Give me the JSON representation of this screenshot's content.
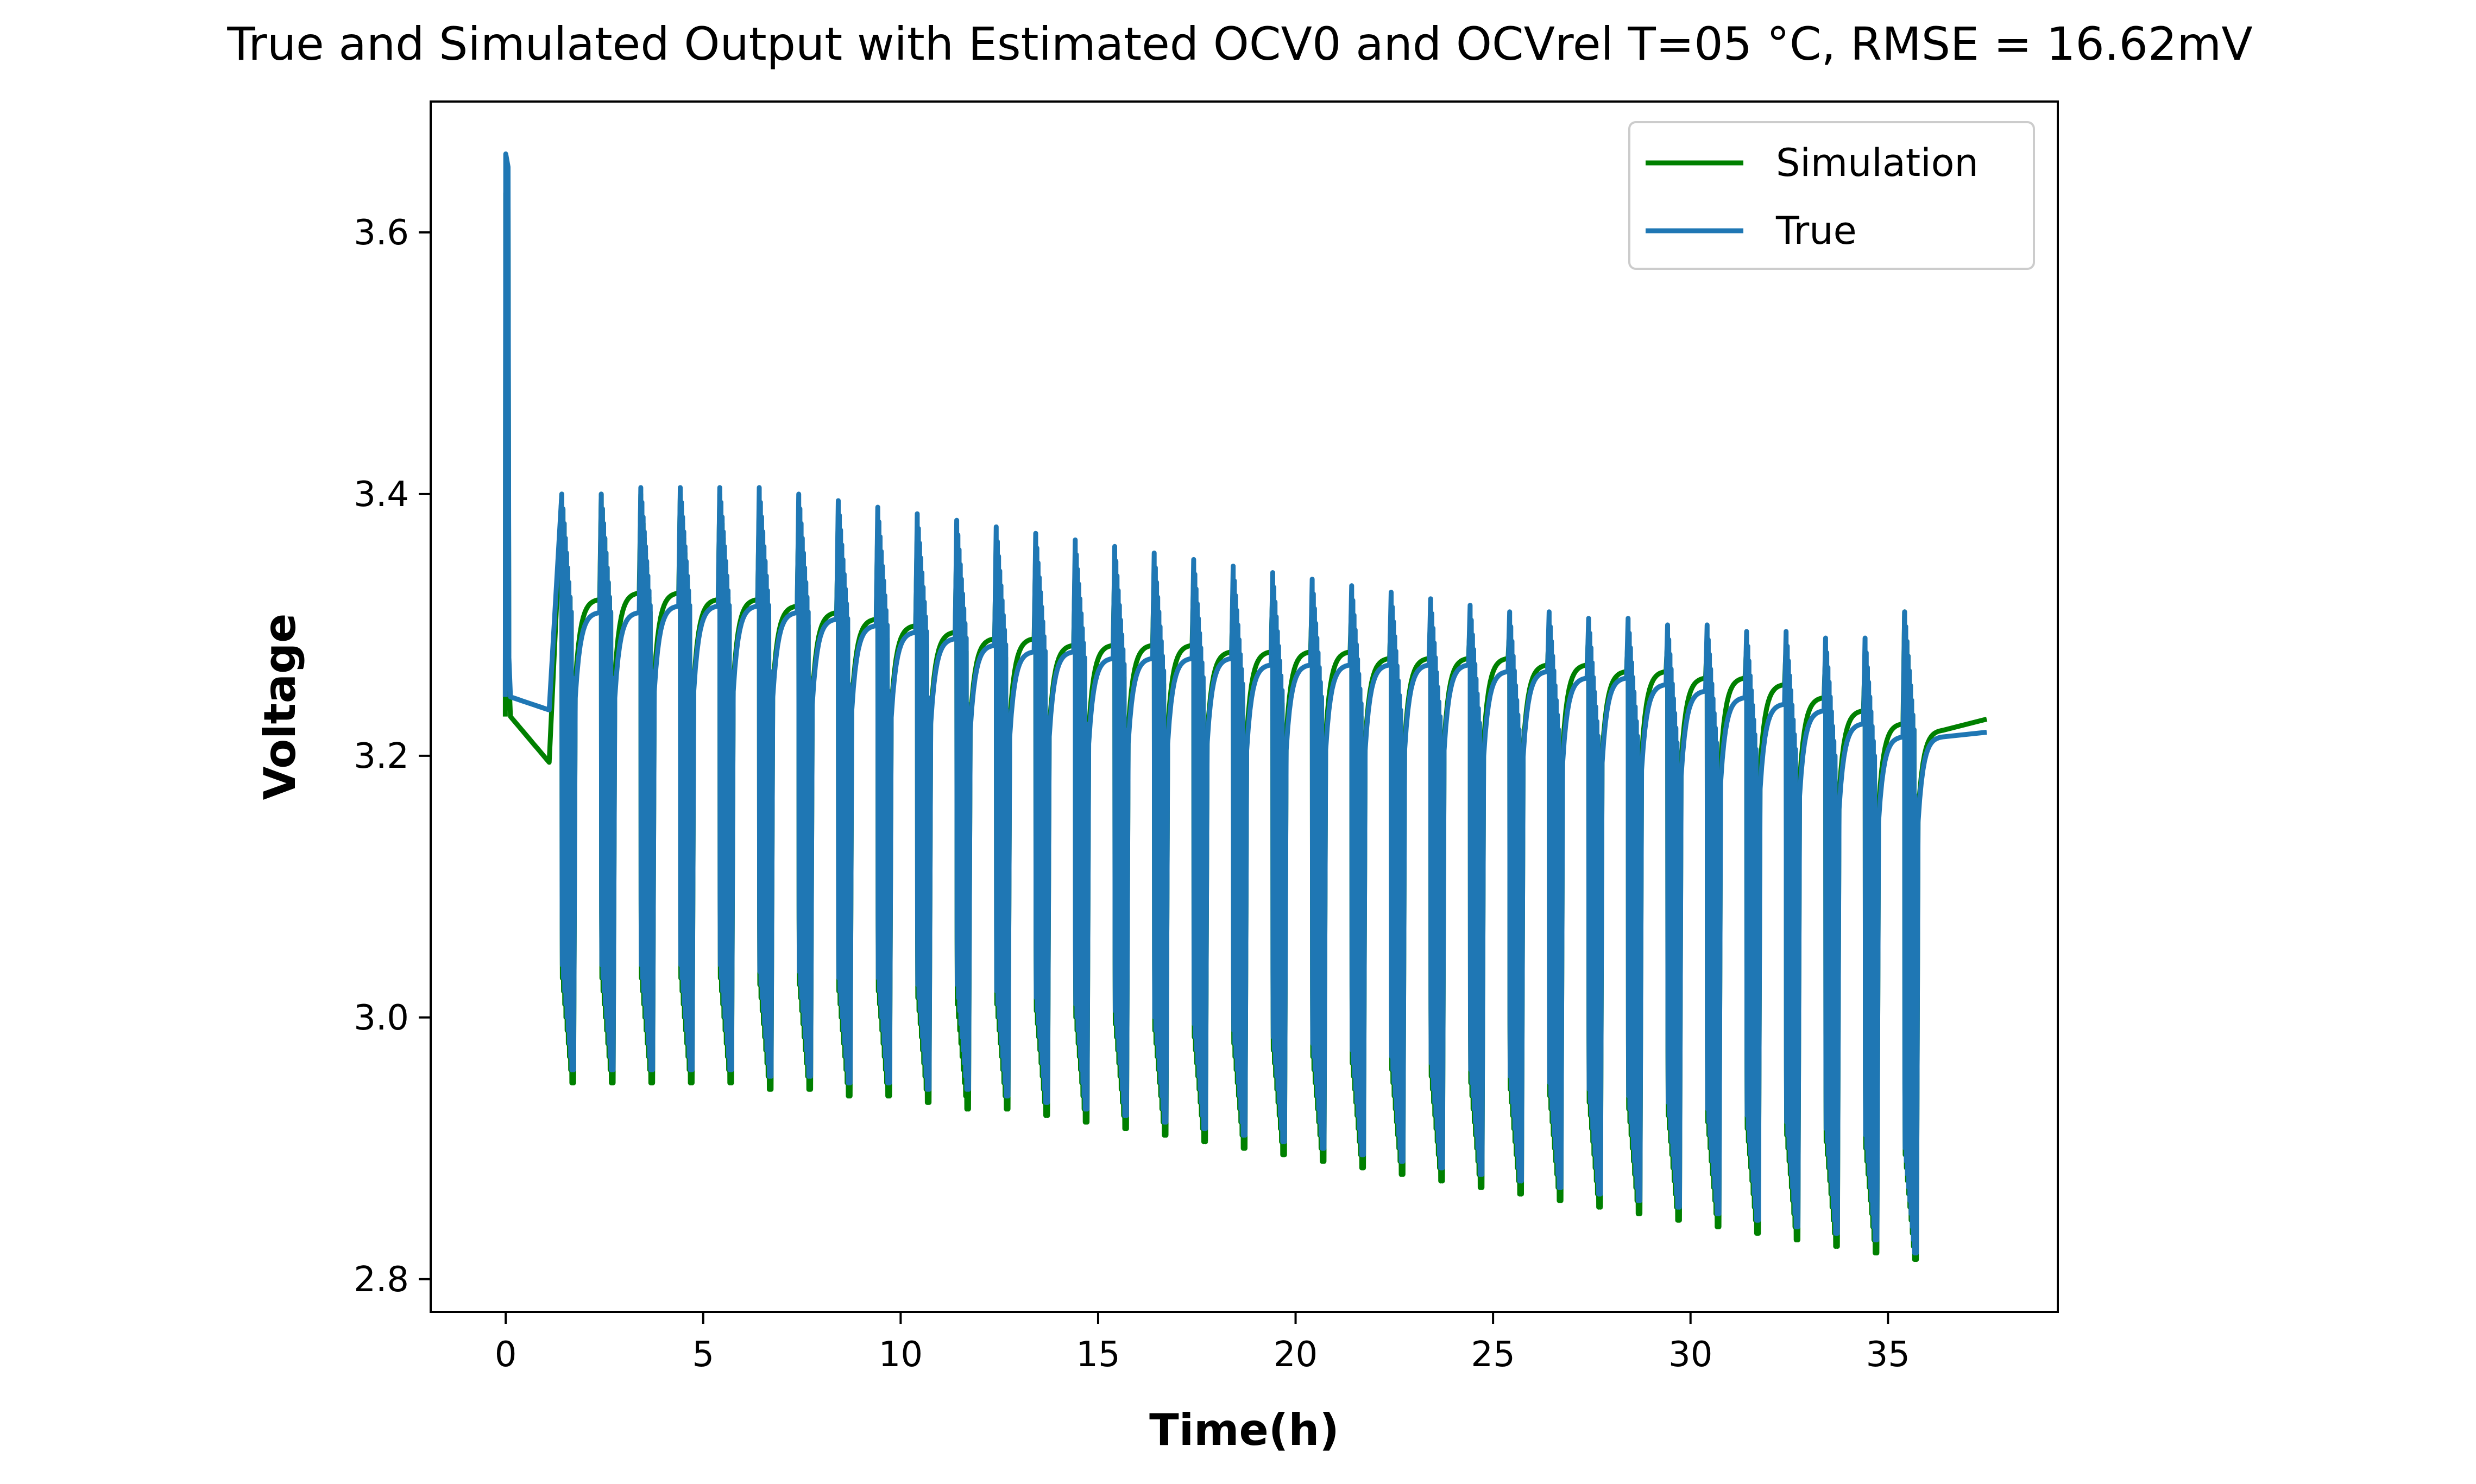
{
  "chart_data": {
    "type": "line",
    "title": "True and Simulated Output with Estimated OCV0 and OCVrel T=05 °C, RMSE = 16.62mV",
    "xlabel": "Time(h)",
    "ylabel": "Voltage",
    "xlim": [
      -1.9,
      39.3
    ],
    "ylim": [
      2.775,
      3.7
    ],
    "xticks": [
      0,
      5,
      10,
      15,
      20,
      25,
      30,
      35
    ],
    "yticks": [
      2.8,
      3.0,
      3.2,
      3.4,
      3.6
    ],
    "xtick_labels": [
      "0",
      "5",
      "10",
      "15",
      "20",
      "25",
      "30",
      "35"
    ],
    "ytick_labels": [
      "2.8",
      "3.0",
      "3.2",
      "3.4",
      "3.6"
    ],
    "grid": false,
    "legend": {
      "position": "upper right",
      "entries": [
        "Simulation",
        "True"
      ]
    },
    "series": [
      {
        "name": "Simulation",
        "color": "#008000",
        "description_of_pattern": "Initial spike to about 3.63 V at t=0, drop to ~3.23 V, slow decline to ~3.20 V near t=1.1 h, then a repeated pulse pattern: each cycle (~1 h period) has upward spikes and deep drops, rest voltage recovers toward a slowly declining level.",
        "initial": {
          "t0": 0.0,
          "peak": 3.63,
          "after_drop": 3.23,
          "end_of_rest_time": 1.1,
          "end_of_rest_value": 3.195
        },
        "cycles": {
          "start_times": [
            1.4,
            2.4,
            3.4,
            4.4,
            5.4,
            6.4,
            7.4,
            8.4,
            9.4,
            10.4,
            11.4,
            12.4,
            13.4,
            14.4,
            15.4,
            16.4,
            17.4,
            18.4,
            19.4,
            20.4,
            21.4,
            22.4,
            23.4,
            24.4,
            25.4,
            26.4,
            27.4,
            28.4,
            29.4,
            30.4,
            31.4,
            32.4,
            33.4,
            34.4,
            35.4
          ],
          "peak_voltage": [
            3.4,
            3.4,
            3.4,
            3.4,
            3.4,
            3.395,
            3.39,
            3.385,
            3.38,
            3.375,
            3.37,
            3.365,
            3.36,
            3.355,
            3.35,
            3.345,
            3.34,
            3.335,
            3.33,
            3.325,
            3.32,
            3.315,
            3.31,
            3.305,
            3.3,
            3.3,
            3.295,
            3.295,
            3.29,
            3.29,
            3.285,
            3.285,
            3.28,
            3.28,
            3.31
          ],
          "min_voltage": [
            2.95,
            2.95,
            2.95,
            2.95,
            2.95,
            2.945,
            2.945,
            2.94,
            2.94,
            2.935,
            2.93,
            2.93,
            2.925,
            2.92,
            2.915,
            2.91,
            2.905,
            2.9,
            2.895,
            2.89,
            2.885,
            2.88,
            2.875,
            2.87,
            2.865,
            2.86,
            2.855,
            2.85,
            2.845,
            2.84,
            2.835,
            2.83,
            2.825,
            2.82,
            2.815
          ],
          "rest_voltage": [
            3.32,
            3.325,
            3.325,
            3.32,
            3.32,
            3.315,
            3.31,
            3.305,
            3.3,
            3.295,
            3.29,
            3.29,
            3.285,
            3.285,
            3.285,
            3.285,
            3.28,
            3.28,
            3.28,
            3.28,
            3.275,
            3.275,
            3.275,
            3.275,
            3.27,
            3.27,
            3.265,
            3.265,
            3.26,
            3.26,
            3.255,
            3.245,
            3.235,
            3.225,
            3.22
          ]
        },
        "final": {
          "t": 37.5,
          "v": 3.228
        }
      },
      {
        "name": "True",
        "color": "#1f77b4",
        "description_of_pattern": "Initial spike to about 3.66 V at t=0, drop to ~3.245 V, slight decline to ~3.235 V near t=1.1 h, then repeated pulse cycles with upward spikes near 3.40 V and deep drops near 2.95–2.82 V, rest voltage slowly declining.",
        "initial": {
          "t0": 0.0,
          "peak": 3.66,
          "after_drop": 3.245,
          "end_of_rest_time": 1.1,
          "end_of_rest_value": 3.235
        },
        "cycles": {
          "start_times": [
            1.4,
            2.4,
            3.4,
            4.4,
            5.4,
            6.4,
            7.4,
            8.4,
            9.4,
            10.4,
            11.4,
            12.4,
            13.4,
            14.4,
            15.4,
            16.4,
            17.4,
            18.4,
            19.4,
            20.4,
            21.4,
            22.4,
            23.4,
            24.4,
            25.4,
            26.4,
            27.4,
            28.4,
            29.4,
            30.4,
            31.4,
            32.4,
            33.4,
            34.4,
            35.4
          ],
          "peak_voltage": [
            3.4,
            3.4,
            3.405,
            3.405,
            3.405,
            3.405,
            3.4,
            3.395,
            3.39,
            3.385,
            3.38,
            3.375,
            3.37,
            3.365,
            3.36,
            3.355,
            3.35,
            3.345,
            3.34,
            3.335,
            3.33,
            3.325,
            3.32,
            3.315,
            3.31,
            3.31,
            3.305,
            3.305,
            3.3,
            3.3,
            3.295,
            3.295,
            3.29,
            3.29,
            3.31
          ],
          "min_voltage": [
            2.96,
            2.96,
            2.96,
            2.96,
            2.96,
            2.955,
            2.955,
            2.95,
            2.95,
            2.945,
            2.945,
            2.94,
            2.935,
            2.93,
            2.925,
            2.92,
            2.915,
            2.91,
            2.905,
            2.9,
            2.895,
            2.89,
            2.885,
            2.88,
            2.875,
            2.87,
            2.865,
            2.86,
            2.855,
            2.85,
            2.845,
            2.84,
            2.835,
            2.83,
            2.82
          ],
          "rest_voltage": [
            3.31,
            3.31,
            3.315,
            3.315,
            3.315,
            3.31,
            3.305,
            3.3,
            3.295,
            3.29,
            3.285,
            3.28,
            3.28,
            3.275,
            3.275,
            3.275,
            3.275,
            3.27,
            3.27,
            3.27,
            3.27,
            3.27,
            3.27,
            3.265,
            3.265,
            3.26,
            3.26,
            3.255,
            3.25,
            3.245,
            3.24,
            3.235,
            3.225,
            3.215,
            3.215
          ]
        },
        "final": {
          "t": 37.5,
          "v": 3.218
        }
      }
    ]
  }
}
